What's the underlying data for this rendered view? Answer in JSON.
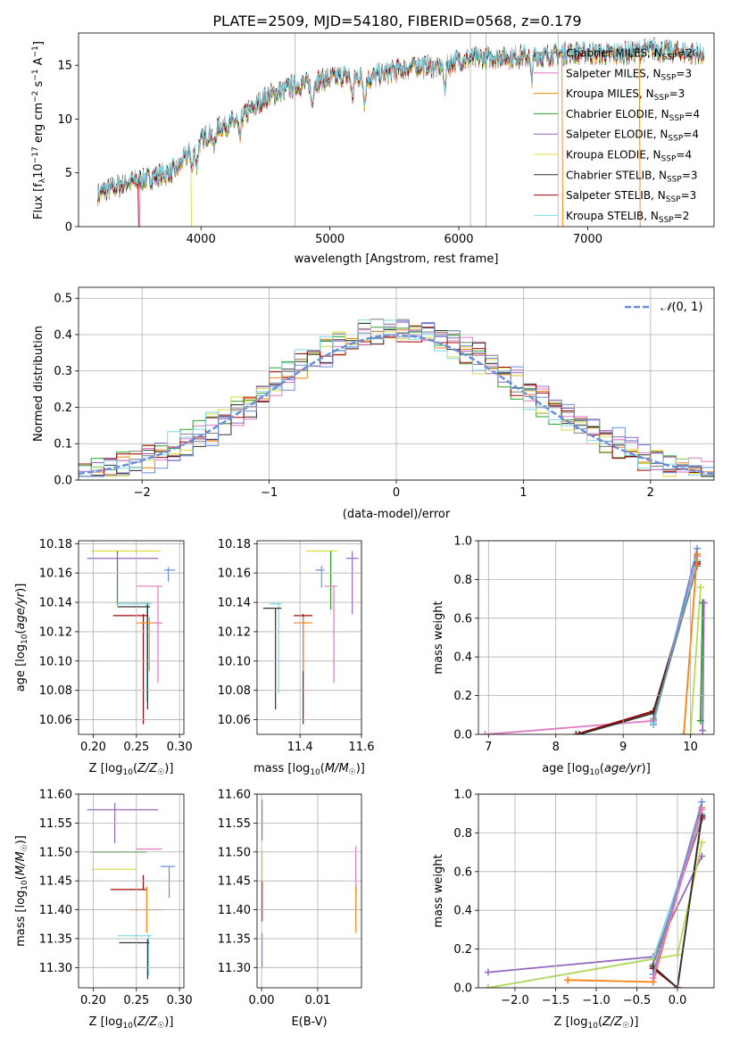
{
  "title": "PLATE=2509, MJD=54180, FIBERID=0568, z=0.179",
  "colors": {
    "Chabrier MILES": "#7f7f7f",
    "Salpeter MILES": "#e377c2",
    "Kroupa MILES": "#ff7f0e",
    "Chabrier ELODIE": "#2ca02c",
    "Salpeter ELODIE": "#9467bd",
    "Kroupa ELODIE": "#dbdb3a",
    "Chabrier STELIB": "#333333",
    "Salpeter STELIB": "#a00000",
    "Kroupa STELIB": "#7fd7e6",
    "blue": "#6a8fd8",
    "lime": "#bada55"
  },
  "legend_spec": [
    {
      "name": "Chabrier MILES",
      "n": "2"
    },
    {
      "name": "Salpeter MILES",
      "n": "3"
    },
    {
      "name": "Kroupa MILES",
      "n": "3"
    },
    {
      "name": "Chabrier ELODIE",
      "n": "4"
    },
    {
      "name": "Salpeter ELODIE",
      "n": "4"
    },
    {
      "name": "Kroupa ELODIE",
      "n": "4"
    },
    {
      "name": "Chabrier STELIB",
      "n": "3"
    },
    {
      "name": "Salpeter STELIB",
      "n": "3"
    },
    {
      "name": "Kroupa STELIB",
      "n": "2"
    }
  ],
  "chart_data": [
    {
      "id": "spectrum",
      "type": "line",
      "xlabel": "wavelength [Angstrom, rest frame]",
      "ylabel": "Flux [f",
      "xlim": [
        3050,
        7980
      ],
      "ylim": [
        0,
        18
      ],
      "xticks": [
        4000,
        5000,
        6000,
        7000
      ],
      "yticks": [
        0,
        5,
        10,
        15
      ],
      "grid": false,
      "legend": "right",
      "continuum": [
        [
          3200,
          3.0
        ],
        [
          3400,
          4.0
        ],
        [
          3600,
          4.5
        ],
        [
          3800,
          5.2
        ],
        [
          3950,
          7.5
        ],
        [
          4100,
          9.0
        ],
        [
          4300,
          10.0
        ],
        [
          4500,
          12.0
        ],
        [
          4700,
          13.0
        ],
        [
          4900,
          13.5
        ],
        [
          5100,
          14.0
        ],
        [
          5300,
          13.8
        ],
        [
          5500,
          14.5
        ],
        [
          5700,
          15.0
        ],
        [
          5850,
          14.8
        ],
        [
          6000,
          15.5
        ],
        [
          6300,
          15.8
        ],
        [
          6600,
          15.8
        ],
        [
          6900,
          16.2
        ],
        [
          7200,
          16.0
        ],
        [
          7500,
          16.5
        ],
        [
          7900,
          16.0
        ]
      ],
      "dips": [
        3933,
        3968,
        4101,
        4300,
        4861,
        5175,
        5270,
        5890,
        6563
      ],
      "drops": [
        {
          "series": "Salpeter STELIB",
          "x": 3510
        },
        {
          "series": "Salpeter MILES",
          "x": 3520
        },
        {
          "series": "Kroupa ELODIE",
          "x": 3920
        },
        {
          "series": "Kroupa MILES",
          "x": 6800
        },
        {
          "series": "Kroupa MILES",
          "x": 7400
        }
      ],
      "vlines": [
        4730,
        6090,
        6210,
        6770
      ]
    },
    {
      "id": "residuals",
      "type": "histogram",
      "xlabel": "(data-model)/error",
      "ylabel": "Normed distribution",
      "xlim": [
        -2.5,
        2.5
      ],
      "ylim": [
        0,
        0.53
      ],
      "xticks": [
        -2,
        -1,
        0,
        1,
        2
      ],
      "yticks": [
        0.0,
        0.1,
        0.2,
        0.3,
        0.4,
        0.5
      ],
      "grid": true,
      "legend": "top-right",
      "gaussian_label": "N(0,1)",
      "bin_width": 0.1,
      "series": [
        {
          "name": "Chabrier MILES",
          "shift": 0.0
        },
        {
          "name": "Salpeter MILES",
          "shift": 0.05
        },
        {
          "name": "Kroupa MILES",
          "shift": 0.02
        },
        {
          "name": "Chabrier ELODIE",
          "shift": -0.05
        },
        {
          "name": "Salpeter ELODIE",
          "shift": 0.06
        },
        {
          "name": "Kroupa ELODIE",
          "shift": -0.04
        },
        {
          "name": "Chabrier STELIB",
          "shift": 0.04
        },
        {
          "name": "Salpeter STELIB",
          "shift": -0.02
        },
        {
          "name": "Kroupa STELIB",
          "shift": -0.06
        },
        {
          "name": "blue",
          "shift": 0.12
        }
      ]
    },
    {
      "id": "age_vs_Z",
      "type": "errorbar",
      "xlabel": "Z [log10(Z/Z☉)]",
      "ylabel": "age [log10(age/yr)]",
      "xlim": [
        0.183,
        0.305
      ],
      "ylim": [
        10.05,
        10.182
      ],
      "xticks": [
        0.2,
        0.25,
        0.3
      ],
      "yticks": [
        10.06,
        10.08,
        10.1,
        10.12,
        10.14,
        10.16,
        10.18
      ],
      "grid": true,
      "points": [
        {
          "series": "Kroupa ELODIE",
          "x": 0.225,
          "x0": 0.197,
          "x1": 0.278,
          "y": 10.175,
          "y0": 10.175,
          "y1": 10.175
        },
        {
          "series": "Salpeter ELODIE",
          "x": 0.215,
          "x0": 0.193,
          "x1": 0.275,
          "y": 10.17,
          "y0": 10.17,
          "y1": 10.17
        },
        {
          "series": "blue",
          "x": 0.287,
          "x0": 0.282,
          "x1": 0.295,
          "y": 10.162,
          "y0": 10.154,
          "y1": 10.164
        },
        {
          "series": "Salpeter MILES",
          "x": 0.27,
          "x0": 0.25,
          "x1": 0.28,
          "y": 10.151,
          "y0": 10.151,
          "y1": 10.151
        },
        {
          "series": "Chabrier ELODIE",
          "x": 0.228,
          "x0": 0.225,
          "x1": 0.265,
          "y": 10.14,
          "y0": 10.138,
          "y1": 10.175
        },
        {
          "series": "Kroupa STELIB",
          "x": 0.262,
          "x0": 0.228,
          "x1": 0.268,
          "y": 10.139,
          "y0": 10.072,
          "y1": 10.14
        },
        {
          "series": "Chabrier STELIB",
          "x": 0.263,
          "x0": 0.228,
          "x1": 0.266,
          "y": 10.137,
          "y0": 10.067,
          "y1": 10.139
        },
        {
          "series": "Salpeter STELIB",
          "x": 0.258,
          "x0": 0.223,
          "x1": 0.263,
          "y": 10.131,
          "y0": 10.057,
          "y1": 10.132
        },
        {
          "series": "Kroupa MILES",
          "x": 0.265,
          "x0": 0.25,
          "x1": 0.28,
          "y": 10.126,
          "y0": 10.093,
          "y1": 10.13
        },
        {
          "series": "Salpeter MILES",
          "x": 0.275,
          "x0": 0.27,
          "x1": 0.28,
          "y": 10.126,
          "y0": 10.085,
          "y1": 10.151
        }
      ]
    },
    {
      "id": "age_vs_mass",
      "type": "errorbar",
      "xlabel": "mass [log10(M/M☉)]",
      "ylabel": "",
      "xlim": [
        11.26,
        11.6
      ],
      "ylim": [
        10.05,
        10.182
      ],
      "xticks": [
        11.4,
        11.6
      ],
      "yticks": [
        10.06,
        10.08,
        10.1,
        10.12,
        10.14,
        10.16,
        10.18
      ],
      "grid": true,
      "points": [
        {
          "series": "Kroupa ELODIE",
          "x": 11.47,
          "x0": 11.42,
          "x1": 11.52,
          "y": 10.175,
          "y0": 10.175,
          "y1": 10.175
        },
        {
          "series": "Salpeter ELODIE",
          "x": 11.57,
          "x0": 11.55,
          "x1": 11.59,
          "y": 10.17,
          "y0": 10.132,
          "y1": 10.175
        },
        {
          "series": "blue",
          "x": 11.47,
          "x0": 11.45,
          "x1": 11.48,
          "y": 10.162,
          "y0": 10.15,
          "y1": 10.165
        },
        {
          "series": "Chabrier ELODIE",
          "x": 11.5,
          "x0": 11.5,
          "x1": 11.5,
          "y": 10.175,
          "y0": 10.135,
          "y1": 10.175
        },
        {
          "series": "Salpeter MILES",
          "x": 11.51,
          "x0": 11.48,
          "x1": 11.52,
          "y": 10.151,
          "y0": 10.085,
          "y1": 10.151
        },
        {
          "series": "Kroupa STELIB",
          "x": 11.33,
          "x0": 11.3,
          "x1": 11.34,
          "y": 10.139,
          "y0": 10.078,
          "y1": 10.14
        },
        {
          "series": "Chabrier STELIB",
          "x": 11.32,
          "x0": 11.28,
          "x1": 11.34,
          "y": 10.136,
          "y0": 10.067,
          "y1": 10.136
        },
        {
          "series": "Salpeter STELIB",
          "x": 11.41,
          "x0": 11.38,
          "x1": 11.44,
          "y": 10.131,
          "y0": 10.057,
          "y1": 10.132
        },
        {
          "series": "Kroupa MILES",
          "x": 11.41,
          "x0": 11.38,
          "x1": 11.44,
          "y": 10.126,
          "y0": 10.093,
          "y1": 10.13
        }
      ]
    },
    {
      "id": "weight_vs_age",
      "type": "line",
      "xlabel": "age  [log10(age/yr)]",
      "ylabel": "mass weight",
      "xlim": [
        6.85,
        10.35
      ],
      "ylim": [
        0,
        1.0
      ],
      "xticks": [
        7,
        8,
        9,
        10
      ],
      "yticks": [
        0.0,
        0.2,
        0.4,
        0.6,
        0.8,
        1.0
      ],
      "grid": true,
      "series": [
        {
          "name": "Salpeter MILES",
          "points": [
            [
              6.95,
              0.0
            ],
            [
              9.45,
              0.07
            ],
            [
              10.1,
              0.92
            ]
          ]
        },
        {
          "name": "Salpeter STELIB",
          "points": [
            [
              8.3,
              0.0
            ],
            [
              9.45,
              0.12
            ],
            [
              10.1,
              0.88
            ]
          ]
        },
        {
          "name": "Chabrier STELIB",
          "points": [
            [
              8.35,
              0.0
            ],
            [
              9.45,
              0.11
            ],
            [
              10.1,
              0.89
            ]
          ]
        },
        {
          "name": "blue",
          "points": [
            [
              9.45,
              0.05
            ],
            [
              10.1,
              0.96
            ]
          ]
        },
        {
          "name": "Kroupa STELIB",
          "points": [
            [
              9.45,
              0.06
            ],
            [
              10.1,
              0.9
            ]
          ]
        },
        {
          "name": "Chabrier MILES",
          "points": [
            [
              9.45,
              0.08
            ],
            [
              10.1,
              0.87
            ]
          ]
        },
        {
          "name": "Kroupa MILES",
          "points": [
            [
              9.9,
              0.0
            ],
            [
              10.1,
              0.93
            ]
          ]
        },
        {
          "name": "lime",
          "points": [
            [
              10.0,
              0.0
            ],
            [
              10.15,
              0.76
            ]
          ]
        },
        {
          "name": "Chabrier ELODIE",
          "points": [
            [
              10.15,
              0.07
            ],
            [
              10.18,
              0.68
            ]
          ]
        },
        {
          "name": "Salpeter ELODIE",
          "points": [
            [
              10.18,
              0.02
            ],
            [
              10.2,
              0.68
            ]
          ]
        }
      ]
    },
    {
      "id": "mass_vs_Z",
      "type": "errorbar",
      "xlabel": "Z [log10(Z/Z☉)]",
      "ylabel": "mass [log10(M/M☉)]",
      "xlim": [
        0.183,
        0.305
      ],
      "ylim": [
        11.265,
        11.6
      ],
      "xticks": [
        0.2,
        0.25,
        0.3
      ],
      "yticks": [
        11.3,
        11.35,
        11.4,
        11.45,
        11.5,
        11.55,
        11.6
      ],
      "grid": true,
      "points": [
        {
          "series": "Salpeter ELODIE",
          "x": 0.225,
          "x0": 0.193,
          "x1": 0.275,
          "y": 11.573,
          "y0": 11.515,
          "y1": 11.585
        },
        {
          "series": "Salpeter MILES",
          "x": 0.262,
          "x0": 0.25,
          "x1": 0.28,
          "y": 11.505,
          "y0": 11.505,
          "y1": 11.505
        },
        {
          "series": "Chabrier ELODIE",
          "x": 0.225,
          "x0": 0.197,
          "x1": 0.262,
          "y": 11.5,
          "y0": 11.5,
          "y1": 11.5
        },
        {
          "series": "blue",
          "x": 0.288,
          "x0": 0.278,
          "x1": 0.295,
          "y": 11.475,
          "y0": 11.42,
          "y1": 11.475
        },
        {
          "series": "Kroupa ELODIE",
          "x": 0.225,
          "x0": 0.197,
          "x1": 0.25,
          "y": 11.47,
          "y0": 11.47,
          "y1": 11.47
        },
        {
          "series": "Salpeter STELIB",
          "x": 0.258,
          "x0": 0.22,
          "x1": 0.262,
          "y": 11.435,
          "y0": 11.435,
          "y1": 11.46
        },
        {
          "series": "Kroupa MILES",
          "x": 0.262,
          "x0": 0.242,
          "x1": 0.28,
          "y": 11.4,
          "y0": 11.36,
          "y1": 11.44
        },
        {
          "series": "Kroupa STELIB",
          "x": 0.264,
          "x0": 0.228,
          "x1": 0.268,
          "y": 11.355,
          "y0": 11.285,
          "y1": 11.358
        },
        {
          "series": "Chabrier STELIB",
          "x": 0.263,
          "x0": 0.23,
          "x1": 0.265,
          "y": 11.343,
          "y0": 11.28,
          "y1": 11.35
        }
      ]
    },
    {
      "id": "mass_vs_EBV",
      "type": "errorbar",
      "xlabel": "E(B-V)",
      "ylabel": "",
      "xlim": [
        -0.0008,
        0.0178
      ],
      "ylim": [
        11.265,
        11.6
      ],
      "xticks": [
        0.0,
        0.01
      ],
      "yticks": [
        11.3,
        11.35,
        11.4,
        11.45,
        11.5,
        11.55,
        11.6
      ],
      "grid": true,
      "points": [
        {
          "series": "Salpeter ELODIE",
          "x": 0.0001,
          "x0": 0.0001,
          "x1": 0.0001,
          "y": 11.56,
          "y0": 11.52,
          "y1": 11.59
        },
        {
          "series": "Kroupa ELODIE",
          "x": 0.0001,
          "x0": 0.0001,
          "x1": 0.0001,
          "y": 11.47,
          "y0": 11.44,
          "y1": 11.5
        },
        {
          "series": "Salpeter STELIB",
          "x": 0.0001,
          "x0": 0.0001,
          "x1": 0.0001,
          "y": 11.41,
          "y0": 11.38,
          "y1": 11.45
        },
        {
          "series": "blue",
          "x": 0.0001,
          "x0": 0.0001,
          "x1": 0.0001,
          "y": 11.33,
          "y0": 11.3,
          "y1": 11.36
        },
        {
          "series": "Salpeter MILES",
          "x": 0.0168,
          "x0": 0.0168,
          "x1": 0.0168,
          "y": 11.47,
          "y0": 11.43,
          "y1": 11.51
        },
        {
          "series": "Kroupa MILES",
          "x": 0.0168,
          "x0": 0.0168,
          "x1": 0.0168,
          "y": 11.4,
          "y0": 11.36,
          "y1": 11.44
        }
      ]
    },
    {
      "id": "weight_vs_Z",
      "type": "line",
      "xlabel": "Z [log10(Z/Z☉)]",
      "ylabel": "mass weight",
      "xlim": [
        -2.45,
        0.45
      ],
      "ylim": [
        0,
        1.0
      ],
      "xticks": [
        -2.0,
        -1.5,
        -1.0,
        -0.5,
        0.0
      ],
      "yticks": [
        0.0,
        0.2,
        0.4,
        0.6,
        0.8,
        1.0
      ],
      "grid": true,
      "series": [
        {
          "name": "Salpeter ELODIE",
          "points": [
            [
              -2.33,
              0.08
            ],
            [
              -0.3,
              0.16
            ],
            [
              0.3,
              0.68
            ]
          ]
        },
        {
          "name": "Kroupa STELIB",
          "points": [
            [
              -2.33,
              0.0
            ],
            [
              -0.3,
              0.15
            ],
            [
              0.3,
              0.9
            ]
          ]
        },
        {
          "name": "lime",
          "points": [
            [
              -2.33,
              0.0
            ],
            [
              0.0,
              0.17
            ],
            [
              0.3,
              0.75
            ]
          ]
        },
        {
          "name": "Kroupa MILES",
          "points": [
            [
              -1.35,
              0.04
            ],
            [
              -0.3,
              0.03
            ],
            [
              0.3,
              0.93
            ]
          ]
        },
        {
          "name": "Chabrier MILES",
          "points": [
            [
              -0.3,
              0.12
            ],
            [
              0.3,
              0.87
            ]
          ]
        },
        {
          "name": "Salpeter STELIB",
          "points": [
            [
              -0.3,
              0.1
            ],
            [
              0.0,
              0.0
            ],
            [
              0.3,
              0.88
            ]
          ]
        },
        {
          "name": "Chabrier STELIB",
          "points": [
            [
              -0.3,
              0.11
            ],
            [
              0.0,
              0.0
            ],
            [
              0.3,
              0.89
            ]
          ]
        },
        {
          "name": "blue",
          "points": [
            [
              -0.3,
              0.07
            ],
            [
              0.3,
              0.96
            ]
          ]
        },
        {
          "name": "Salpeter MILES",
          "points": [
            [
              -0.3,
              0.05
            ],
            [
              0.3,
              0.92
            ]
          ]
        }
      ]
    }
  ]
}
